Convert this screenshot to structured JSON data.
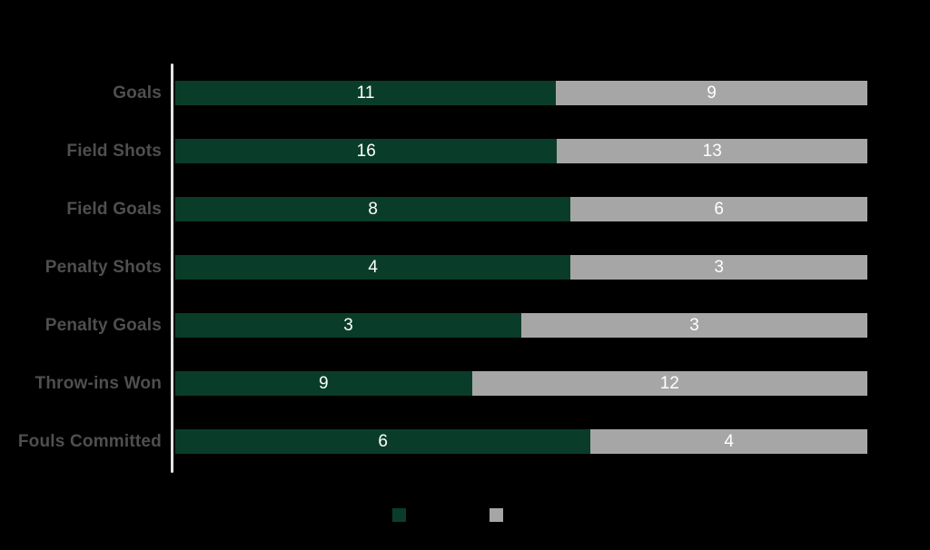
{
  "chart_data": {
    "type": "bar",
    "orientation": "horizontal",
    "stacked": "100%",
    "categories": [
      "Goals",
      "Field Shots",
      "Field Goals",
      "Penalty Shots",
      "Penalty Goals",
      "Throw-ins Won",
      "Fouls Committed"
    ],
    "series": [
      {
        "name": "",
        "color": "#0a3d29",
        "values": [
          11,
          16,
          8,
          4,
          3,
          9,
          6
        ]
      },
      {
        "name": "",
        "color": "#a6a6a6",
        "values": [
          9,
          13,
          6,
          3,
          3,
          12,
          4
        ]
      }
    ],
    "value_labels": {
      "visible": true,
      "position": "center",
      "color": "#ffffff"
    },
    "legend": {
      "position": "bottom",
      "labels_visible": false,
      "swatch_colors": [
        "#0a3d29",
        "#a6a6a6"
      ]
    },
    "axis": {
      "y_axis_line_color": "#e4e4e4",
      "category_label_color": "#4f4f4f",
      "gridlines": false,
      "x_tick_labels_visible": false
    },
    "background": "#000000"
  }
}
